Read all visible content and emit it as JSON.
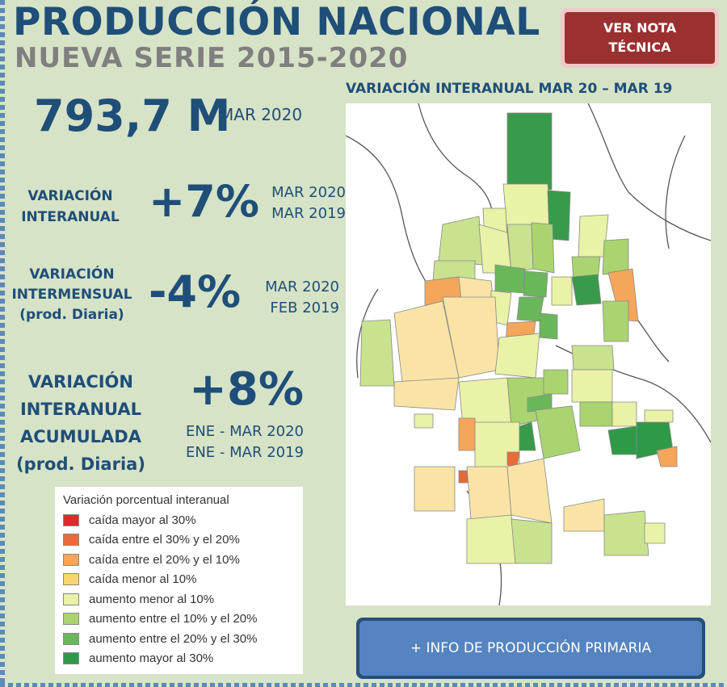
{
  "header": {
    "title": "PRODUCCIÓN NACIONAL",
    "subtitle": "NUEVA SERIE 2015-2020"
  },
  "buttons": {
    "nota_tecnica": "VER NOTA\nTÉCNICA",
    "info_produccion": "+ INFO DE PRODUCCIÓN PRIMARIA"
  },
  "total": {
    "value": "793,7 M",
    "period": "MAR 2020"
  },
  "stats": [
    {
      "label": "VARIACIÓN\nINTERANUAL",
      "value": "+7%",
      "period": "MAR 2020\nMAR 2019"
    },
    {
      "label": "VARIACIÓN\nINTERMENSUAL\n(prod. Diaria)",
      "value": "-4%",
      "period": "MAR 2020\nFEB 2019"
    },
    {
      "label": "VARIACIÓN\nINTERANUAL\nACUMULADA\n(prod. Diaria)",
      "value": "+8%",
      "period": "ENE - MAR 2020\nENE - MAR 2019"
    }
  ],
  "map": {
    "title": "VARIACIÓN INTERANUAL MAR 20 – MAR 19"
  },
  "legend": {
    "title": "Variación porcentual interanual",
    "items": [
      {
        "label": "caída mayor al 30%",
        "color": "#e02a2a"
      },
      {
        "label": "caída entre el 30% y el 20%",
        "color": "#ec6a3a"
      },
      {
        "label": "caída entre el 20% y el 10%",
        "color": "#f5a65b"
      },
      {
        "label": "caída menor al 10%",
        "color": "#f9d56e"
      },
      {
        "label": "aumento menor al 10%",
        "color": "#e9f2a6"
      },
      {
        "label": "aumento entre el 10% y el 20%",
        "color": "#a9d46f"
      },
      {
        "label": "aumento entre el 20% y el 30%",
        "color": "#6ab75a"
      },
      {
        "label": "aumento mayor al 30%",
        "color": "#2e9a48"
      }
    ]
  }
}
